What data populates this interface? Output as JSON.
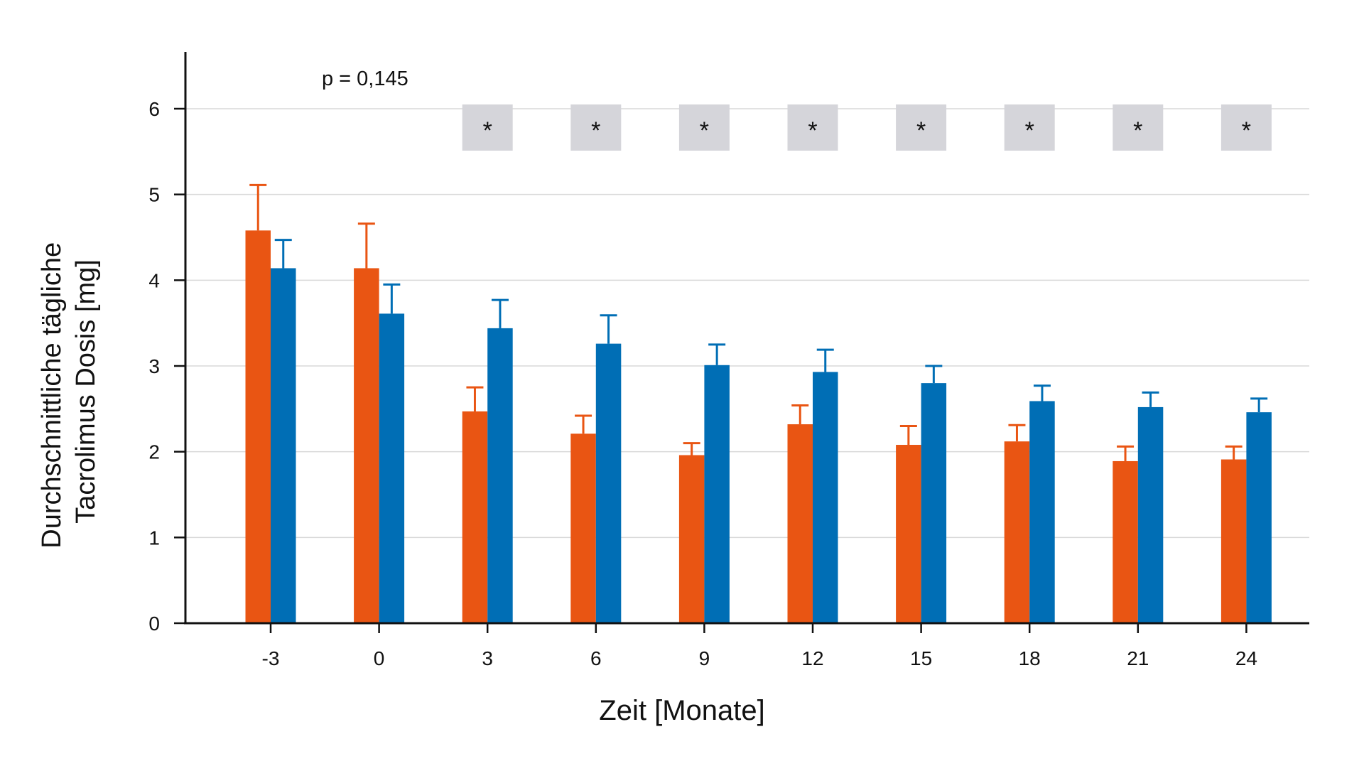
{
  "chart_data": {
    "type": "bar",
    "xlabel": "Zeit [Monate]",
    "ylabel_lines": [
      "Durchschnittliche tägliche",
      "Tacrolimus Dosis [mg]"
    ],
    "categories": [
      "-3",
      "0",
      "3",
      "6",
      "9",
      "12",
      "15",
      "18",
      "21",
      "24"
    ],
    "ylim": [
      0,
      6.6
    ],
    "yticks": [
      "0",
      "1",
      "2",
      "3",
      "4",
      "5",
      "6"
    ],
    "grid": true,
    "legend": "none",
    "annotation": "p = 0,145",
    "significance_marker": "*",
    "significant_categories": [
      "3",
      "6",
      "9",
      "12",
      "15",
      "18",
      "21",
      "24"
    ],
    "series": [
      {
        "color": "#E95513",
        "values": [
          4.58,
          4.14,
          2.47,
          2.21,
          1.96,
          2.32,
          2.08,
          2.12,
          1.89,
          1.91
        ],
        "error_upper": [
          5.11,
          4.66,
          2.75,
          2.42,
          2.1,
          2.54,
          2.3,
          2.31,
          2.06,
          2.06
        ]
      },
      {
        "color": "#006EB5",
        "values": [
          4.14,
          3.61,
          3.44,
          3.26,
          3.01,
          2.93,
          2.8,
          2.59,
          2.52,
          2.46
        ],
        "error_upper": [
          4.47,
          3.95,
          3.77,
          3.59,
          3.25,
          3.19,
          3.0,
          2.77,
          2.69,
          2.62
        ]
      }
    ],
    "significance_box_color": "#D5D5DA",
    "grid_color": "#D9D9D9"
  }
}
